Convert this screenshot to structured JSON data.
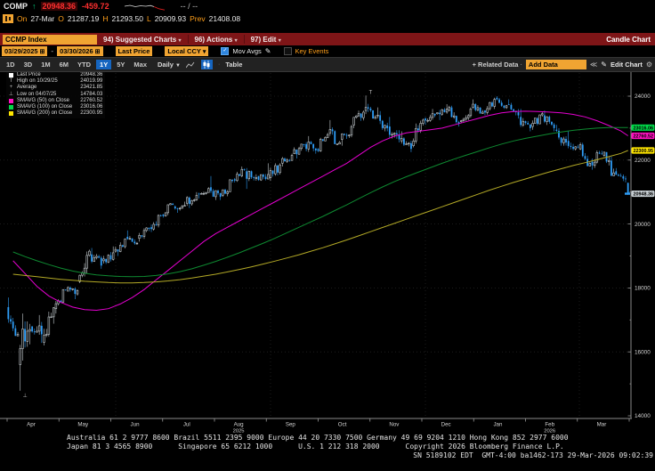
{
  "header": {
    "ticker": "COMP",
    "arrow": "↑",
    "last": "20948.36",
    "change": "-459.72",
    "bid_ask": "-- / --",
    "day_line": {
      "on_label": "On",
      "date": "27-Mar",
      "o_label": "O",
      "open": "21287.19",
      "h_label": "H",
      "high": "21293.50",
      "l_label": "L",
      "low": "20909.93",
      "prev_label": "Prev",
      "prev": "21408.08"
    }
  },
  "titlebar": {
    "security": "CCMP Index",
    "menus": [
      {
        "label": "94) Suggested Charts"
      },
      {
        "label": "96) Actions"
      },
      {
        "label": "97) Edit"
      }
    ],
    "right_label": "Candle Chart"
  },
  "toolbar": {
    "date_from": "03/29/2025",
    "date_to": "03/30/2026",
    "field": "Last Price",
    "currency": "Local CCY",
    "mov_avgs_label": "Mov Avgs",
    "key_events_label": "Key Events"
  },
  "tabbar": {
    "ranges": [
      "1D",
      "3D",
      "1M",
      "6M",
      "YTD",
      "1Y",
      "5Y",
      "Max"
    ],
    "active_range": "1Y",
    "period": "Daily",
    "table_label": "Table",
    "related_label": "+ Related Data",
    "add_data_placeholder": "Add Data",
    "edit_chart_label": "Edit Chart"
  },
  "legend": {
    "rows": [
      {
        "marker": "square",
        "color": "#ffffff",
        "label": "Last Price",
        "value": "20948.36"
      },
      {
        "marker": "T",
        "color": "#bbbbbb",
        "label": "High on 10/29/25",
        "value": "24019.99"
      },
      {
        "marker": "+",
        "color": "#bbbbbb",
        "label": "Average",
        "value": "23421.85"
      },
      {
        "marker": "⊥",
        "color": "#bbbbbb",
        "label": "Low on 04/07/25",
        "value": "14784.03"
      },
      {
        "marker": "square",
        "color": "#ff0fc0",
        "label": "SMAVG (50)  on Close",
        "value": "22760.52"
      },
      {
        "marker": "square",
        "color": "#00d948",
        "label": "SMAVG (100) on Close",
        "value": "23016.06"
      },
      {
        "marker": "square",
        "color": "#ffe600",
        "label": "SMAVG (200) on Close",
        "value": "22300.95"
      }
    ]
  },
  "footer": {
    "line1": "Australia 61 2 9777 8600 Brazil 5511 2395 9000 Europe 44 20 7330 7500 Germany 49 69 9204 1210 Hong Kong 852 2977 6000",
    "line2": "Japan 81 3 4565 8900      Singapore 65 6212 1000      U.S. 1 212 318 2000      Copyright 2026 Bloomberg Finance L.P.",
    "line3": "SN 5189102 EDT  GMT-4:00 ba1462-173 29-Mar-2026 09:02:39"
  },
  "chart_data": {
    "type": "candlestick",
    "title": "CCMP Index 1Y Daily Candle Chart",
    "x_range": [
      "03/29/2025",
      "03/30/2026"
    ],
    "months": [
      "Apr",
      "May",
      "Jun",
      "Jul",
      "Aug",
      "Sep",
      "Oct",
      "Nov",
      "Dec",
      "Jan",
      "Feb",
      "Mar"
    ],
    "year_sublabels": {
      "4": "2025",
      "10": "2026"
    },
    "ylim": [
      14000,
      24400
    ],
    "y_ticks": [
      14000,
      16000,
      18000,
      20000,
      22000,
      24000
    ],
    "grid": "dotted",
    "high_marker": {
      "date": "10/29/25",
      "value": 24019.99
    },
    "low_marker": {
      "date": "04/07/25",
      "value": 14784.03
    },
    "average": 23421.85,
    "last_trade": {
      "date": "27-Mar",
      "open": 21287.19,
      "high": 21293.5,
      "low": 20909.93,
      "close": 20948.36,
      "prev": 21408.08,
      "change": -459.72
    },
    "weekly_ohlc": [
      [
        17400,
        17700,
        16500,
        16550
      ],
      [
        15600,
        17200,
        14784.03,
        16700
      ],
      [
        16800,
        17150,
        16280,
        16550
      ],
      [
        16300,
        17400,
        16200,
        17380
      ],
      [
        17350,
        17950,
        17200,
        17930
      ],
      [
        17900,
        18050,
        17650,
        17920
      ],
      [
        18200,
        19200,
        18150,
        19150
      ],
      [
        19050,
        19250,
        18600,
        18700
      ],
      [
        18850,
        19300,
        18750,
        19100
      ],
      [
        19150,
        19550,
        19000,
        19530
      ],
      [
        19600,
        19800,
        19350,
        19400
      ],
      [
        19550,
        19900,
        19450,
        19850
      ],
      [
        19900,
        20300,
        19750,
        20270
      ],
      [
        20300,
        20650,
        20200,
        20600
      ],
      [
        20550,
        20700,
        20350,
        20580
      ],
      [
        20650,
        21000,
        20500,
        20900
      ],
      [
        20950,
        21150,
        20800,
        21110
      ],
      [
        21150,
        21500,
        20750,
        20850
      ],
      [
        20900,
        21400,
        20850,
        21350
      ],
      [
        21400,
        21800,
        21300,
        21700
      ],
      [
        21650,
        21750,
        21100,
        21450
      ],
      [
        21500,
        21900,
        21350,
        21550
      ],
      [
        21450,
        21900,
        21350,
        21850
      ],
      [
        21900,
        22200,
        21800,
        22150
      ],
      [
        22200,
        22500,
        22050,
        22470
      ],
      [
        22500,
        22750,
        22200,
        22300
      ],
      [
        22350,
        22850,
        22250,
        22800
      ],
      [
        22850,
        23250,
        22500,
        22550
      ],
      [
        22650,
        23100,
        22450,
        23050
      ],
      [
        23100,
        23550,
        23000,
        23500
      ],
      [
        23550,
        24019.99,
        23300,
        23350
      ],
      [
        23400,
        23650,
        22900,
        23000
      ],
      [
        23050,
        23350,
        22550,
        22650
      ],
      [
        22600,
        22900,
        22250,
        22350
      ],
      [
        22450,
        23300,
        22400,
        23250
      ],
      [
        23300,
        23600,
        23100,
        23400
      ],
      [
        23450,
        23750,
        23250,
        23600
      ],
      [
        23550,
        23700,
        23050,
        23150
      ],
      [
        23200,
        23650,
        23150,
        23600
      ],
      [
        23650,
        23900,
        23450,
        23500
      ],
      [
        23550,
        23950,
        23400,
        23900
      ],
      [
        23950,
        24000,
        23600,
        23700
      ],
      [
        23750,
        23900,
        23300,
        23400
      ],
      [
        23350,
        23600,
        22900,
        23000
      ],
      [
        23050,
        23500,
        22950,
        23450
      ],
      [
        23400,
        23550,
        22900,
        23000
      ],
      [
        22950,
        23100,
        22450,
        22550
      ],
      [
        22600,
        22900,
        22300,
        22400
      ],
      [
        22350,
        22550,
        21800,
        21900
      ],
      [
        21950,
        22300,
        21700,
        22200
      ],
      [
        22150,
        22250,
        21500,
        21600
      ],
      [
        21650,
        21750,
        21300,
        21408.08
      ],
      [
        21287.19,
        21293.5,
        20909.93,
        20948.36
      ]
    ],
    "series": [
      {
        "name": "SMAVG (50) on Close",
        "color": "#e500d0",
        "last": 22760.52,
        "values": [
          18850,
          18450,
          18050,
          17750,
          17550,
          17400,
          17320,
          17300,
          17350,
          17500,
          17700,
          17950,
          18250,
          18550,
          18850,
          19150,
          19450,
          19700,
          19900,
          20100,
          20300,
          20500,
          20700,
          20900,
          21100,
          21300,
          21500,
          21700,
          21900,
          22150,
          22400,
          22600,
          22750,
          22850,
          22900,
          22950,
          23000,
          23100,
          23200,
          23300,
          23400,
          23480,
          23520,
          23530,
          23520,
          23500,
          23480,
          23430,
          23350,
          23230,
          23080,
          22910,
          22760.52
        ]
      },
      {
        "name": "SMAVG (100) on Close",
        "color": "#0e8a31",
        "last": 23016.06,
        "values": [
          19125,
          18980,
          18850,
          18730,
          18620,
          18530,
          18460,
          18410,
          18380,
          18360,
          18350,
          18360,
          18390,
          18440,
          18510,
          18600,
          18710,
          18830,
          18960,
          19100,
          19250,
          19400,
          19560,
          19730,
          19900,
          20070,
          20240,
          20420,
          20600,
          20790,
          20980,
          21160,
          21330,
          21480,
          21620,
          21760,
          21900,
          22030,
          22150,
          22270,
          22390,
          22500,
          22600,
          22680,
          22750,
          22820,
          22880,
          22930,
          22970,
          23000,
          23020,
          23020,
          23016.06
        ]
      },
      {
        "name": "SMAVG (200) on Close",
        "color": "#b3a926",
        "last": 22300.95,
        "values": [
          18430,
          18390,
          18350,
          18310,
          18270,
          18240,
          18210,
          18190,
          18170,
          18160,
          18160,
          18170,
          18190,
          18220,
          18260,
          18310,
          18370,
          18430,
          18500,
          18580,
          18660,
          18750,
          18840,
          18940,
          19040,
          19150,
          19260,
          19380,
          19500,
          19630,
          19760,
          19890,
          20020,
          20150,
          20280,
          20410,
          20540,
          20670,
          20800,
          20930,
          21060,
          21180,
          21300,
          21410,
          21520,
          21630,
          21730,
          21830,
          21920,
          22010,
          22110,
          22210,
          22300.95
        ]
      }
    ],
    "y_badges": [
      {
        "text": "23016.06",
        "value": 23016.06,
        "color": "#00d948"
      },
      {
        "text": "22760.52",
        "value": 22760.52,
        "color": "#ff0fc0"
      },
      {
        "text": "22300.95",
        "value": 22300.95,
        "color": "#ffe600"
      },
      {
        "text": "20948.36",
        "value": 20948.36,
        "color": "#c7ced2"
      }
    ],
    "candle_up_color": "#c7ced2",
    "candle_down_color": "#2e9df7"
  }
}
